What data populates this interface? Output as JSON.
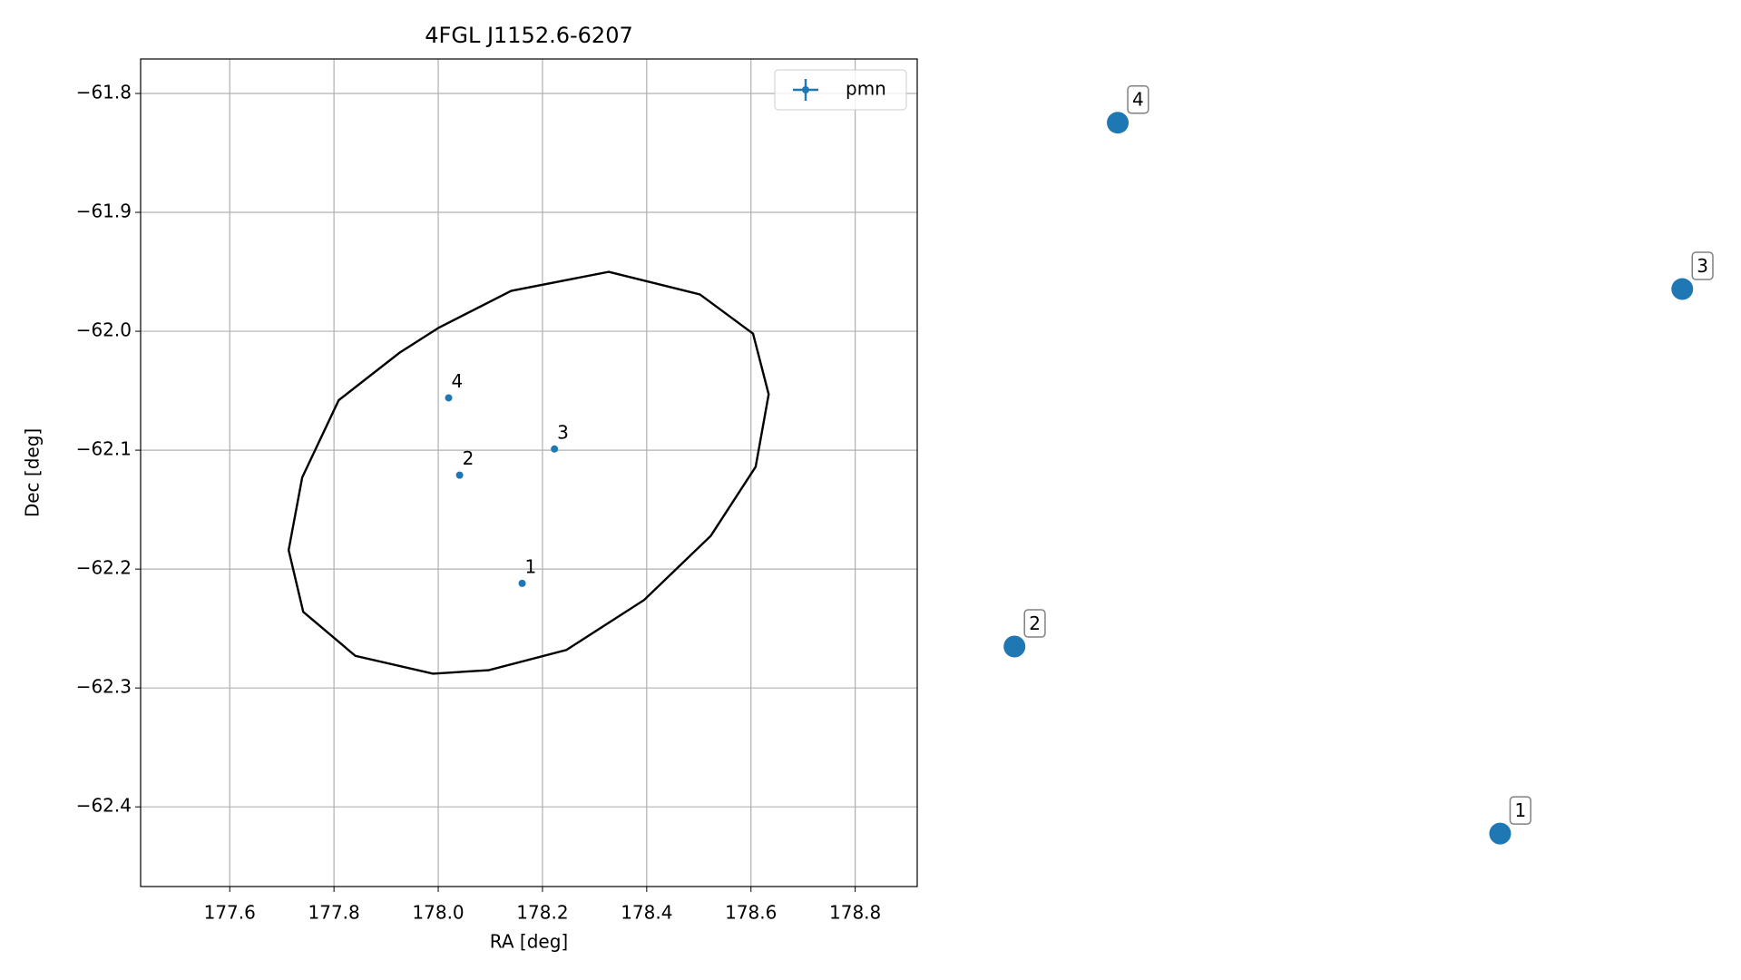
{
  "chart_data": [
    {
      "type": "scatter",
      "title": "4FGL J1152.6-6207",
      "xlabel": "RA [deg]",
      "ylabel": "Dec [deg]",
      "xlim": [
        177.429,
        178.919
      ],
      "ylim": [
        -62.467,
        -61.771
      ],
      "xticks": [
        177.6,
        177.8,
        {
          "value": 178.0,
          "label": "178.0"
        },
        178.2,
        178.4,
        178.6,
        178.8
      ],
      "yticks": [
        {
          "value": -61.8,
          "label": "−61.8"
        },
        {
          "value": -61.9,
          "label": "−61.9"
        },
        {
          "value": -62.0,
          "label": "−62.0"
        },
        {
          "value": -62.1,
          "label": "−62.1"
        },
        {
          "value": -62.2,
          "label": "−62.2"
        },
        {
          "value": -62.3,
          "label": "−62.3"
        },
        {
          "value": -62.4,
          "label": "−62.4"
        }
      ],
      "grid": true,
      "legend": "upper right",
      "series": [
        {
          "name": "pmn",
          "color": "#1f77b4",
          "x": [
            178.161,
            178.041,
            178.223,
            178.02
          ],
          "values": [
            -62.212,
            -62.121,
            -62.099,
            -62.056
          ],
          "labels": [
            "1",
            "2",
            "3",
            "4"
          ]
        }
      ],
      "ellipse": {
        "color": "#000000",
        "x": [
          178.327,
          178.502,
          178.604,
          178.634,
          178.609,
          178.523,
          178.395,
          178.246,
          178.097,
          177.99,
          177.841,
          177.741,
          177.713,
          177.739,
          177.809,
          177.926,
          178.001,
          178.14
        ],
        "values": [
          -61.95,
          -61.969,
          -62.002,
          -62.053,
          -62.114,
          -62.172,
          -62.226,
          -62.268,
          -62.285,
          -62.288,
          -62.273,
          -62.236,
          -62.184,
          -62.123,
          -62.058,
          -62.018,
          -61.997,
          -61.966
        ]
      }
    },
    {
      "type": "scatter",
      "axes": false,
      "xlim": [
        0,
        1
      ],
      "ylim": [
        0,
        1
      ],
      "series": [
        {
          "color": "#1f77b4",
          "x": [
            0.706,
            0.09,
            0.937,
            0.221
          ],
          "values": [
            0.064,
            0.29,
            0.722,
            0.923
          ],
          "labels": [
            "1",
            "2",
            "3",
            "4"
          ]
        }
      ]
    }
  ]
}
